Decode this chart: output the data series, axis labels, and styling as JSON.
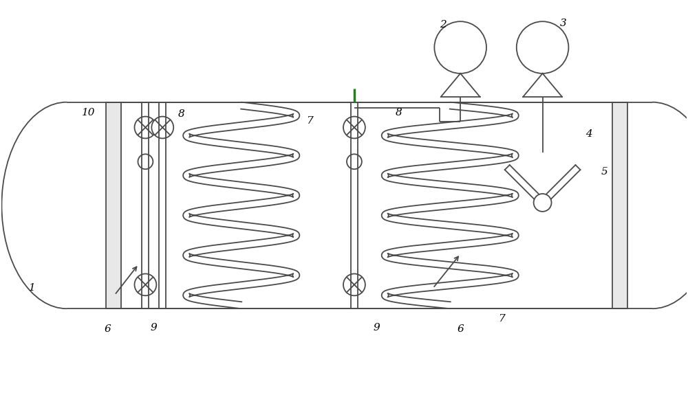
{
  "bg_color": "#ffffff",
  "line_color": "#4a4a4a",
  "fig_width": 10.0,
  "fig_height": 5.72,
  "dpi": 100
}
